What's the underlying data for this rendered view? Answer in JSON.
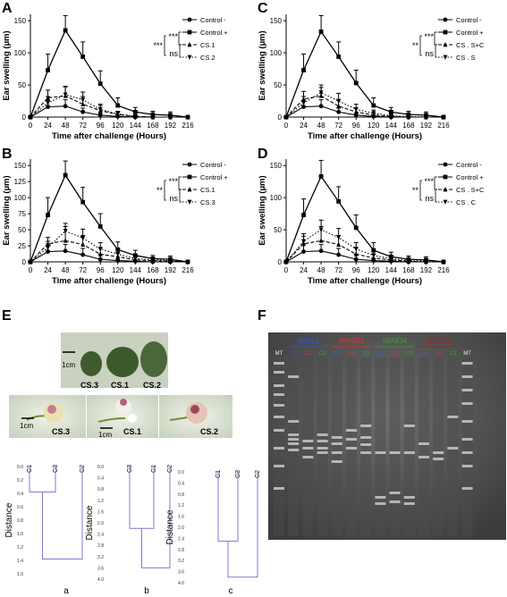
{
  "panel_labels": {
    "A": "A",
    "B": "B",
    "C": "C",
    "D": "D",
    "E": "E",
    "F": "F"
  },
  "chart_data": [
    {
      "panel": "A",
      "type": "line",
      "xlabel": "Time after challenge (Hours)",
      "ylabel": "Ear swelling (µm)",
      "xlim": [
        0,
        216
      ],
      "ylim": [
        0,
        160
      ],
      "x_ticks": [
        0,
        24,
        48,
        72,
        96,
        120,
        144,
        168,
        192,
        216
      ],
      "y_ticks": [
        0,
        50,
        100,
        150
      ],
      "x": [
        0,
        24,
        48,
        72,
        96,
        120,
        144,
        168,
        192,
        216
      ],
      "legend_position": "right",
      "significance": {
        "outer": "***",
        "inner": "ns",
        "left": "***"
      },
      "series": [
        {
          "name": "Control -",
          "marker": "circle",
          "line": "solid",
          "values": [
            0,
            16,
            17,
            8,
            3,
            1,
            0,
            0,
            0,
            0
          ],
          "errors": [
            0,
            10,
            10,
            6,
            3,
            2,
            0,
            0,
            0,
            0
          ]
        },
        {
          "name": "Control +",
          "marker": "square",
          "line": "solid",
          "values": [
            0,
            73,
            135,
            94,
            52,
            18,
            8,
            4,
            3,
            0
          ],
          "errors": [
            0,
            25,
            23,
            23,
            20,
            12,
            7,
            5,
            5,
            0
          ]
        },
        {
          "name": "CS.1",
          "marker": "triangle-up",
          "line": "dashed",
          "values": [
            0,
            30,
            33,
            20,
            10,
            4,
            1,
            0,
            0,
            0
          ],
          "errors": [
            0,
            12,
            15,
            12,
            8,
            4,
            2,
            0,
            0,
            0
          ]
        },
        {
          "name": "CS.2",
          "marker": "triangle-down",
          "line": "dotted",
          "values": [
            0,
            22,
            35,
            27,
            12,
            5,
            1,
            0,
            0,
            0
          ],
          "errors": [
            0,
            10,
            12,
            12,
            8,
            4,
            2,
            0,
            0,
            0
          ]
        }
      ]
    },
    {
      "panel": "B",
      "type": "line",
      "xlabel": "Time after challenge (Hours)",
      "ylabel": "Ear swelling (µm)",
      "xlim": [
        0,
        216
      ],
      "ylim": [
        0,
        160
      ],
      "x_ticks": [
        0,
        24,
        48,
        72,
        96,
        120,
        144,
        168,
        192,
        216
      ],
      "y_ticks": [
        0,
        25,
        50,
        75,
        100,
        125,
        150
      ],
      "x": [
        0,
        24,
        48,
        72,
        96,
        120,
        144,
        168,
        192,
        216
      ],
      "legend_position": "right",
      "significance": {
        "outer": "***",
        "inner": "ns",
        "left": "**"
      },
      "series": [
        {
          "name": "Control -",
          "marker": "circle",
          "line": "solid",
          "values": [
            0,
            16,
            17,
            11,
            4,
            2,
            1,
            0,
            0,
            0
          ],
          "errors": [
            0,
            12,
            10,
            10,
            8,
            3,
            2,
            0,
            0,
            0
          ]
        },
        {
          "name": "Control +",
          "marker": "square",
          "line": "solid",
          "values": [
            0,
            73,
            135,
            93,
            55,
            19,
            10,
            5,
            4,
            0
          ],
          "errors": [
            0,
            27,
            22,
            23,
            20,
            12,
            8,
            5,
            5,
            0
          ]
        },
        {
          "name": "CS.1",
          "marker": "triangle-up",
          "line": "dashed",
          "values": [
            0,
            28,
            33,
            27,
            12,
            8,
            3,
            2,
            1,
            0
          ],
          "errors": [
            0,
            10,
            22,
            14,
            10,
            6,
            4,
            3,
            2,
            0
          ]
        },
        {
          "name": "CS.3",
          "marker": "triangle-down",
          "line": "dotted",
          "values": [
            0,
            22,
            48,
            37,
            20,
            12,
            5,
            3,
            2,
            0
          ],
          "errors": [
            0,
            10,
            12,
            14,
            10,
            8,
            5,
            3,
            2,
            0
          ]
        }
      ]
    },
    {
      "panel": "C",
      "type": "line",
      "xlabel": "Time after challenge (Hours)",
      "ylabel": "Ear swelling (µm)",
      "xlim": [
        0,
        216
      ],
      "ylim": [
        0,
        160
      ],
      "x_ticks": [
        0,
        24,
        48,
        72,
        96,
        120,
        144,
        168,
        192,
        216
      ],
      "y_ticks": [
        0,
        50,
        100,
        150
      ],
      "x": [
        0,
        24,
        48,
        72,
        96,
        120,
        144,
        168,
        192,
        216
      ],
      "legend_position": "right",
      "significance": {
        "outer": "***",
        "inner": "ns",
        "left": "**"
      },
      "series": [
        {
          "name": "Control -",
          "marker": "circle",
          "line": "solid",
          "values": [
            0,
            16,
            17,
            8,
            3,
            1,
            0,
            0,
            0,
            0
          ],
          "errors": [
            0,
            10,
            10,
            6,
            3,
            2,
            0,
            0,
            0,
            0
          ]
        },
        {
          "name": "Control +",
          "marker": "square",
          "line": "solid",
          "values": [
            0,
            73,
            133,
            94,
            53,
            18,
            8,
            4,
            3,
            0
          ],
          "errors": [
            0,
            25,
            25,
            23,
            20,
            12,
            7,
            5,
            5,
            0
          ]
        },
        {
          "name": "CS . S+C",
          "marker": "triangle-up",
          "line": "dashed",
          "values": [
            0,
            28,
            33,
            17,
            8,
            3,
            1,
            0,
            0,
            0
          ],
          "errors": [
            0,
            12,
            13,
            10,
            6,
            3,
            2,
            0,
            0,
            0
          ]
        },
        {
          "name": "CS . S",
          "marker": "triangle-down",
          "line": "dotted",
          "values": [
            0,
            22,
            38,
            25,
            12,
            6,
            2,
            1,
            0,
            0
          ],
          "errors": [
            0,
            10,
            12,
            12,
            8,
            5,
            3,
            2,
            0,
            0
          ]
        }
      ]
    },
    {
      "panel": "D",
      "type": "line",
      "xlabel": "Time after challenge (Hours)",
      "ylabel": "Ear swelling (µm)",
      "xlim": [
        0,
        216
      ],
      "ylim": [
        0,
        160
      ],
      "x_ticks": [
        0,
        24,
        48,
        72,
        96,
        120,
        144,
        168,
        192,
        216
      ],
      "y_ticks": [
        0,
        50,
        100,
        150
      ],
      "x": [
        0,
        24,
        48,
        72,
        96,
        120,
        144,
        168,
        192,
        216
      ],
      "legend_position": "right",
      "significance": {
        "outer": "***",
        "inner": "ns",
        "left": "**"
      },
      "series": [
        {
          "name": "Control -",
          "marker": "circle",
          "line": "solid",
          "values": [
            0,
            16,
            17,
            11,
            4,
            2,
            1,
            0,
            0,
            0
          ],
          "errors": [
            0,
            12,
            10,
            10,
            8,
            3,
            2,
            0,
            0,
            0
          ]
        },
        {
          "name": "Control +",
          "marker": "square",
          "line": "solid",
          "values": [
            0,
            73,
            133,
            94,
            53,
            18,
            8,
            4,
            3,
            0
          ],
          "errors": [
            0,
            25,
            25,
            23,
            20,
            12,
            7,
            5,
            5,
            0
          ]
        },
        {
          "name": "CS . S+C",
          "marker": "triangle-up",
          "line": "dashed",
          "values": [
            0,
            28,
            33,
            27,
            12,
            6,
            3,
            1,
            0,
            0
          ],
          "errors": [
            0,
            12,
            22,
            14,
            10,
            6,
            4,
            2,
            0,
            0
          ]
        },
        {
          "name": "CS . C",
          "marker": "triangle-down",
          "line": "dotted",
          "values": [
            0,
            32,
            50,
            38,
            20,
            10,
            5,
            2,
            1,
            0
          ],
          "errors": [
            0,
            12,
            15,
            14,
            10,
            8,
            5,
            3,
            2,
            0
          ]
        }
      ]
    }
  ],
  "panel_e": {
    "leaf_labels": [
      "CS.3",
      "CS.1",
      "CS.2"
    ],
    "flower_labels": [
      "CS.3",
      "CS.1",
      "CS.2"
    ],
    "scale_label": "1cm",
    "colors": {
      "leaf": "#3e5d2c",
      "leaf_bg": "#c8d2bf",
      "flower_bg": "#dfe6d6",
      "dendro": "#7b7bd4"
    },
    "dendrograms": [
      {
        "sublabel": "a",
        "ylabel": "Distance",
        "leaves": [
          "C1",
          "C3",
          "C2"
        ],
        "y_ticks": [
          "0.0",
          "0.2",
          "0.4",
          "0.6",
          "0.8",
          "1.0",
          "1.2",
          "1.4",
          "1.6"
        ],
        "max": 1.6,
        "merges": [
          0.38,
          1.38
        ]
      },
      {
        "sublabel": "b",
        "ylabel": "Distance",
        "leaves": [
          "C3",
          "C1",
          "C2"
        ],
        "y_ticks": [
          "0.0",
          "0.4",
          "0.8",
          "1.2",
          "1.6",
          "2.0",
          "2.4",
          "2.8",
          "3.2",
          "3.6",
          "4.0"
        ],
        "max": 4.0,
        "merges": [
          2.2,
          3.6
        ]
      },
      {
        "sublabel": "c",
        "ylabel": "Distance",
        "leaves": [
          "C1",
          "C3",
          "C2"
        ],
        "y_ticks": [
          "0.0",
          "0.4",
          "0.8",
          "1.2",
          "1.6",
          "2.0",
          "2.4",
          "2.8",
          "3.2",
          "3.6",
          "4.0"
        ],
        "max": 4.0,
        "merges": [
          2.5,
          3.8
        ]
      }
    ]
  },
  "panel_f": {
    "groups": [
      {
        "name": "IMA12",
        "color": "#3a55c8",
        "lanes": [
          "C1",
          "C2",
          "C3"
        ]
      },
      {
        "name": "IMA303",
        "color": "#d43a3a",
        "lanes": [
          "C1",
          "C2",
          "C3"
        ]
      },
      {
        "name": "IMA834",
        "color": "#3aa03a",
        "lanes": [
          "C1",
          "C2",
          "C3"
        ]
      },
      {
        "name": "UBC818",
        "color": "#8a2a2a",
        "lanes": [
          "C1",
          "C2",
          "C3"
        ]
      }
    ],
    "marker_label": "MT",
    "lane_colors": [
      "#3a55c8",
      "#d43a3a",
      "#3aa03a"
    ],
    "gel_color": "#5a5a5a"
  }
}
